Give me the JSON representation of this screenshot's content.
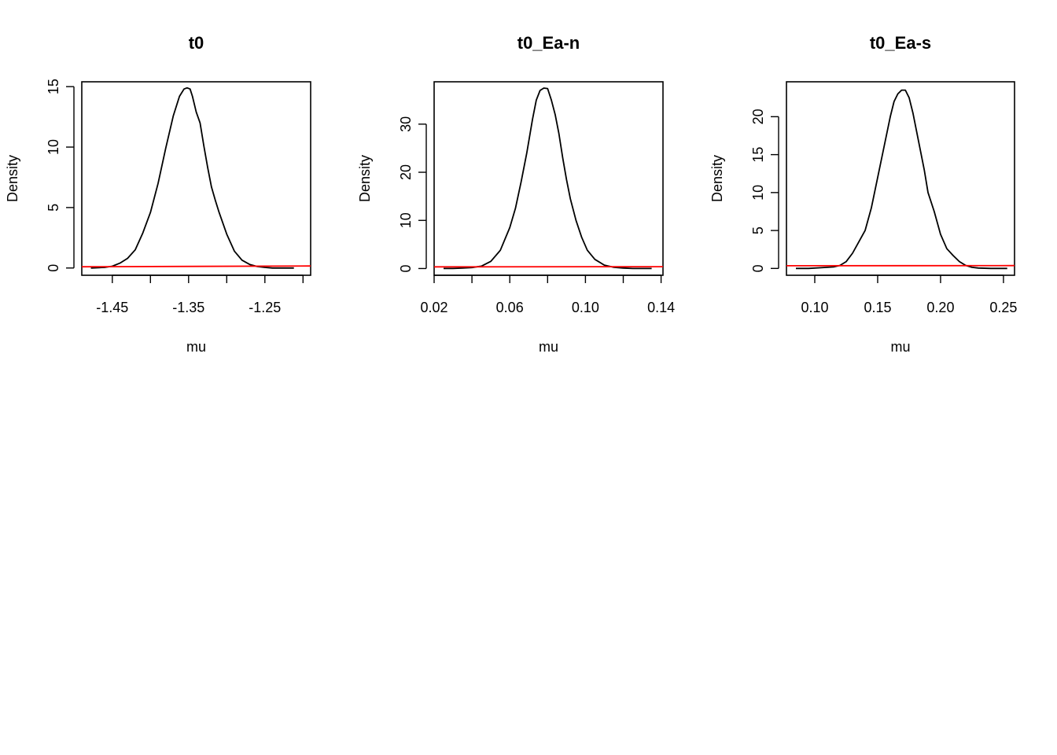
{
  "chart_data": [
    {
      "type": "line",
      "title": "t0",
      "xlabel": "mu",
      "ylabel": "Density",
      "xlim": [
        -1.49,
        -1.19
      ],
      "ylim": [
        -0.6,
        15.4
      ],
      "xticks": [
        -1.45,
        -1.4,
        -1.35,
        -1.3,
        -1.25,
        -1.2
      ],
      "xtick_labels": [
        "-1.45",
        "",
        "-1.35",
        "",
        "-1.25",
        ""
      ],
      "yticks": [
        0,
        5,
        10,
        15
      ],
      "ytick_labels": [
        "0",
        "5",
        "10",
        "15"
      ],
      "grid": false,
      "colors": {
        "posterior": "#000000",
        "prior": "#ff0000"
      },
      "series": [
        {
          "x": [
            -1.478,
            -1.46,
            -1.45,
            -1.44,
            -1.43,
            -1.42,
            -1.41,
            -1.4,
            -1.39,
            -1.38,
            -1.37,
            -1.362,
            -1.356,
            -1.352,
            -1.348,
            -1.345,
            -1.34,
            -1.335,
            -1.33,
            -1.325,
            -1.32,
            -1.315,
            -1.31,
            -1.3,
            -1.29,
            -1.28,
            -1.27,
            -1.26,
            -1.25,
            -1.24,
            -1.23,
            -1.212
          ],
          "y": [
            0.0,
            0.05,
            0.15,
            0.4,
            0.8,
            1.5,
            2.9,
            4.6,
            7.0,
            9.9,
            12.6,
            14.2,
            14.8,
            14.9,
            14.8,
            14.2,
            12.9,
            12.0,
            10.1,
            8.3,
            6.7,
            5.6,
            4.6,
            2.8,
            1.4,
            0.65,
            0.3,
            0.12,
            0.05,
            0.0,
            0.0,
            0.0
          ]
        },
        {
          "x": [
            -1.49,
            -1.19
          ],
          "y": [
            0.1,
            0.17
          ]
        }
      ]
    },
    {
      "type": "line",
      "title": "t0_Ea-n",
      "xlabel": "mu",
      "ylabel": "Density",
      "xlim": [
        0.02,
        0.141
      ],
      "ylim": [
        -1.4,
        38.8
      ],
      "xticks": [
        0.02,
        0.04,
        0.06,
        0.08,
        0.1,
        0.12,
        0.14
      ],
      "xtick_labels": [
        "0.02",
        "",
        "0.06",
        "",
        "0.10",
        "",
        "0.14"
      ],
      "yticks": [
        0,
        10,
        20,
        30
      ],
      "ytick_labels": [
        "0",
        "10",
        "20",
        "30"
      ],
      "grid": false,
      "colors": {
        "posterior": "#000000",
        "prior": "#ff0000"
      },
      "series": [
        {
          "x": [
            0.025,
            0.03,
            0.035,
            0.04,
            0.045,
            0.05,
            0.055,
            0.06,
            0.063,
            0.066,
            0.069,
            0.072,
            0.074,
            0.076,
            0.078,
            0.08,
            0.082,
            0.084,
            0.086,
            0.088,
            0.09,
            0.092,
            0.095,
            0.098,
            0.101,
            0.105,
            0.11,
            0.115,
            0.12,
            0.125,
            0.13,
            0.135
          ],
          "y": [
            0.0,
            0.0,
            0.1,
            0.2,
            0.5,
            1.5,
            3.8,
            8.5,
            12.5,
            18.0,
            24.0,
            31.0,
            35.0,
            37.0,
            37.5,
            37.4,
            35.0,
            32.0,
            28.0,
            23.0,
            18.5,
            14.5,
            10.0,
            6.5,
            3.8,
            1.9,
            0.7,
            0.25,
            0.1,
            0.0,
            0.0,
            0.0
          ]
        },
        {
          "x": [
            0.02,
            0.141
          ],
          "y": [
            0.35,
            0.38
          ]
        }
      ]
    },
    {
      "type": "line",
      "title": "t0_Ea-s",
      "xlabel": "mu",
      "ylabel": "Density",
      "xlim": [
        0.0775,
        0.2588
      ],
      "ylim": [
        -0.9,
        24.6
      ],
      "xticks": [
        0.1,
        0.15,
        0.2,
        0.25
      ],
      "xtick_labels": [
        "0.10",
        "0.15",
        "0.20",
        "0.25"
      ],
      "yticks": [
        0,
        5,
        10,
        15,
        20
      ],
      "ytick_labels": [
        "0",
        "5",
        "10",
        "15",
        "20"
      ],
      "grid": false,
      "colors": {
        "posterior": "#000000",
        "prior": "#ff0000"
      },
      "series": [
        {
          "x": [
            0.085,
            0.095,
            0.105,
            0.115,
            0.12,
            0.125,
            0.13,
            0.135,
            0.14,
            0.145,
            0.15,
            0.155,
            0.16,
            0.163,
            0.166,
            0.169,
            0.172,
            0.175,
            0.178,
            0.181,
            0.184,
            0.187,
            0.19,
            0.195,
            0.2,
            0.205,
            0.21,
            0.215,
            0.22,
            0.225,
            0.23,
            0.24,
            0.253
          ],
          "y": [
            0.0,
            0.0,
            0.1,
            0.2,
            0.4,
            0.9,
            2.0,
            3.5,
            5.0,
            8.0,
            12.0,
            16.0,
            20.0,
            22.0,
            23.0,
            23.5,
            23.5,
            22.5,
            20.5,
            18.0,
            15.5,
            13.0,
            10.0,
            7.5,
            4.5,
            2.6,
            1.7,
            0.9,
            0.4,
            0.15,
            0.05,
            0.0,
            0.0
          ]
        },
        {
          "x": [
            0.0775,
            0.2588
          ],
          "y": [
            0.35,
            0.38
          ]
        }
      ]
    }
  ]
}
